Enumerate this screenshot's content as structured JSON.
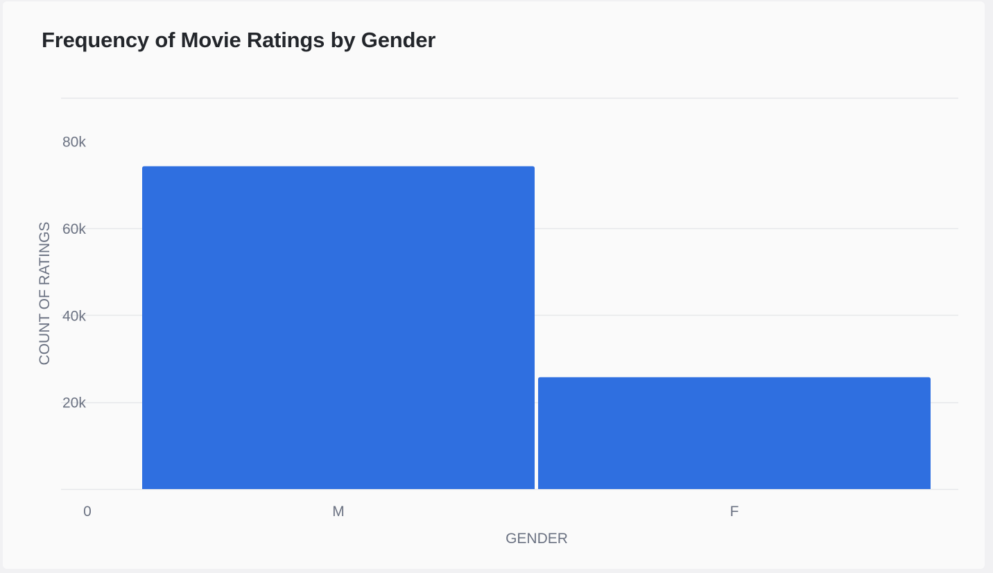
{
  "chart_data": {
    "type": "bar",
    "title": "Frequency of Movie Ratings by Gender",
    "xlabel": "GENDER",
    "ylabel": "COUNT OF RATINGS",
    "categories": [
      "M",
      "F"
    ],
    "values": [
      74260,
      25740
    ],
    "ylim": [
      0,
      80000
    ],
    "ytick_values": [
      20000,
      40000,
      60000,
      80000
    ],
    "ytick_labels": [
      "20k",
      "40k",
      "60k",
      "80k"
    ],
    "zero_label": "0",
    "grid": true,
    "legend": "none",
    "bar_color": "#2f6fe0",
    "grid_color": "#e6e7ea",
    "axis_text_color": "#6b7282"
  }
}
